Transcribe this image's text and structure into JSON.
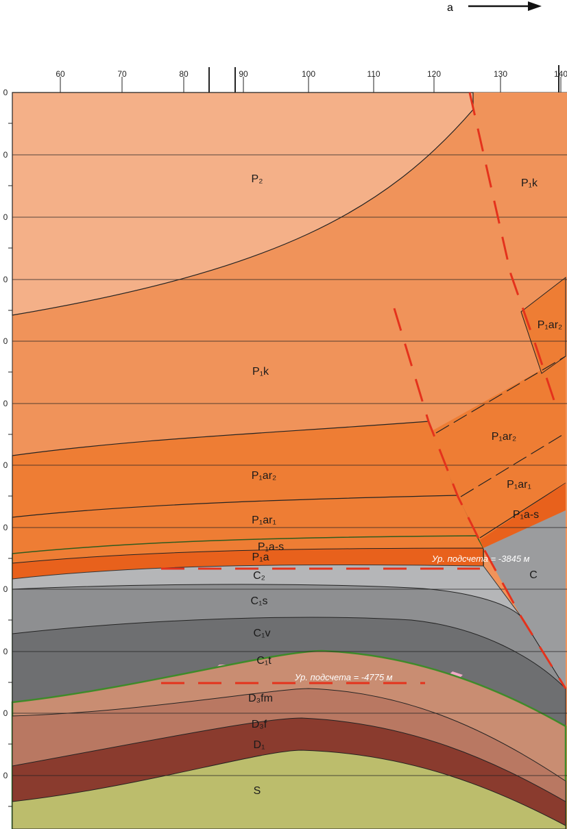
{
  "header": {
    "direction": "a"
  },
  "top_scale": {
    "ticks": [
      "60",
      "70",
      "80",
      "90",
      "100",
      "110",
      "120",
      "130",
      "140"
    ]
  },
  "depth_scale": {
    "labels": [
      "0",
      "0",
      "0",
      "0",
      "0",
      "0",
      "0",
      "0",
      "0",
      "0",
      "0",
      "0"
    ]
  },
  "units": [
    {
      "label": "P₂"
    },
    {
      "label": "P₁k"
    },
    {
      "label": "P₁ar₂"
    },
    {
      "label": "P₁k"
    },
    {
      "label": "P₁ar₂"
    },
    {
      "label": "P₁ar₂"
    },
    {
      "label": "P₁ar₁"
    },
    {
      "label": "P₁ar₁"
    },
    {
      "label": "P₁a-s"
    },
    {
      "label": "P₁a-s"
    },
    {
      "label": "P₁a"
    },
    {
      "label": "C₂"
    },
    {
      "label": "C"
    },
    {
      "label": "C₁s"
    },
    {
      "label": "C₁v"
    },
    {
      "label": "C₁t"
    },
    {
      "label": "D₃fm"
    },
    {
      "label": "D₃f"
    },
    {
      "label": "D₁"
    },
    {
      "label": "S"
    }
  ],
  "annotations": {
    "level_1": "Ур. подсчета = -3845 м",
    "level_2": "Ур. подсчета = -4775 м"
  }
}
